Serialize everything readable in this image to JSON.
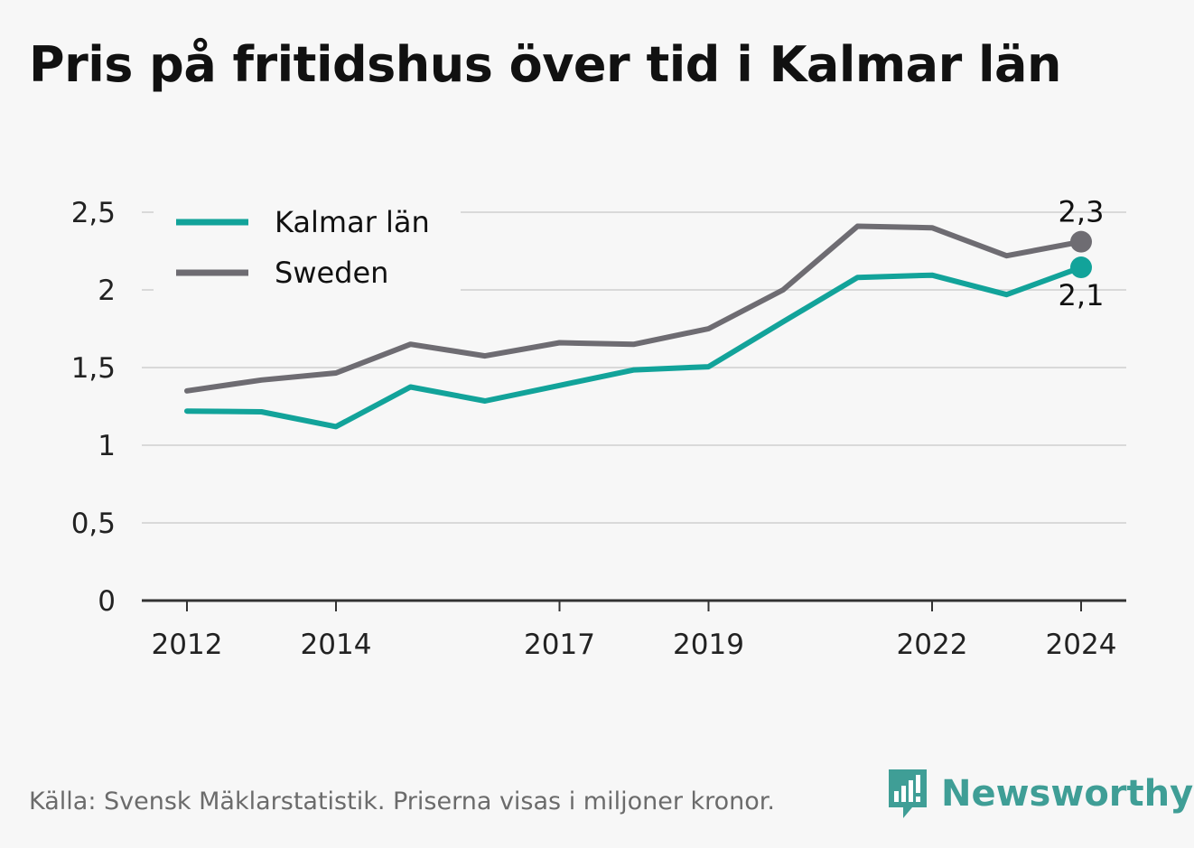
{
  "title": "Pris på fritidshus över tid i Kalmar län",
  "chart_data": {
    "type": "line",
    "x": [
      2012,
      2013,
      2014,
      2015,
      2016,
      2017,
      2018,
      2019,
      2020,
      2021,
      2022,
      2023,
      2024
    ],
    "x_tick_labels": [
      "2012",
      "2014",
      "2017",
      "2019",
      "2022",
      "2024"
    ],
    "x_tick_values": [
      2012,
      2014,
      2017,
      2019,
      2022,
      2024
    ],
    "y_tick_labels": [
      "0",
      "0,5",
      "1",
      "1,5",
      "2",
      "2,5"
    ],
    "y_tick_values": [
      0,
      0.5,
      1,
      1.5,
      2,
      2.5
    ],
    "ylim": [
      0,
      2.5
    ],
    "grid": true,
    "legend_position": "top-left",
    "series": [
      {
        "name": "Kalmar län",
        "color": "#12a39a",
        "values": [
          1.22,
          1.215,
          1.12,
          1.375,
          1.285,
          1.385,
          1.485,
          1.505,
          1.795,
          2.08,
          2.095,
          1.97,
          2.145
        ],
        "end_label": "2,1"
      },
      {
        "name": "Sweden",
        "color": "#6e6c72",
        "values": [
          1.35,
          1.42,
          1.465,
          1.65,
          1.575,
          1.66,
          1.65,
          1.75,
          2.0,
          2.41,
          2.4,
          2.22,
          2.31
        ],
        "end_label": "2,3"
      }
    ]
  },
  "footer": {
    "source": "Källa: Svensk Mäklarstatistik. Priserna visas i miljoner kronor.",
    "brand": "Newsworthy",
    "brand_color": "#3f9e96"
  }
}
